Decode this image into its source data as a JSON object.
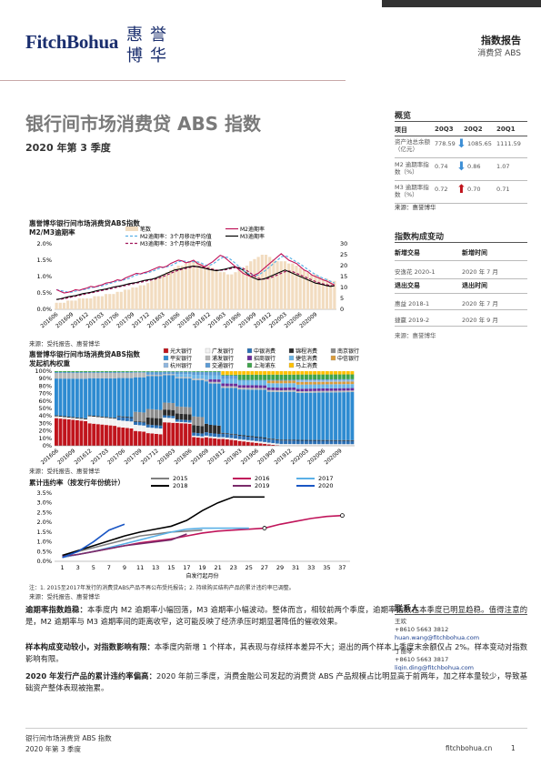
{
  "header": {
    "logo_text": "FitchBohua",
    "seal_chars": [
      "惠",
      "誉",
      "博",
      "华"
    ],
    "report_type": "指数报告",
    "report_sector": "消费贷 ABS"
  },
  "title": "银行间市场消费贷 ABS 指数",
  "subtitle": "2020 年第 3 季度",
  "overview": {
    "heading": "概览",
    "columns": [
      "项目",
      "20Q3",
      "20Q2",
      "20Q1"
    ],
    "rows": [
      {
        "label": "资产池总余额（亿元）",
        "q3": "778.59",
        "q2": "1085.65",
        "q1": "1111.59",
        "arrow": "down"
      },
      {
        "label": "M2 逾期率指数（%）",
        "q3": "0.74",
        "q2": "0.86",
        "q1": "1.07",
        "arrow": "down"
      },
      {
        "label": "M3 逾期率指数（%）",
        "q3": "0.72",
        "q2": "0.70",
        "q1": "0.71",
        "arrow": "up"
      }
    ],
    "source": "来源：惠誉博华"
  },
  "composition": {
    "heading": "指数构成变动",
    "added_label": "新增交易",
    "added_time_label": "新增时间",
    "added": [
      {
        "name": "安逸花 2020-1",
        "time": "2020 年 7 月"
      }
    ],
    "removed_label": "退出交易",
    "removed_time_label": "退出时间",
    "removed": [
      {
        "name": "惠益 2018-1",
        "time": "2020 年 7 月"
      },
      {
        "name": "捷赢 2019-2",
        "time": "2020 年 9 月"
      }
    ],
    "source": "来源：惠誉博华"
  },
  "contacts": {
    "heading": "联系人",
    "people": [
      {
        "name": "王欢",
        "phone": "+8610 5663 3812",
        "email": "huan.wang@fitchbohua.com"
      },
      {
        "name": "丁丽琴",
        "phone": "+8610 5663 3817",
        "email": "liqin.ding@fitchbohua.com"
      }
    ]
  },
  "chart_data": [
    {
      "type": "line",
      "title": "惠誉博华银行间市场消费贷ABS指数",
      "subtitle": "M2/M3逾期率",
      "legend": [
        "笔数",
        "M2逾期率",
        "M2逾期率：3个月移动平均值",
        "M3逾期率",
        "M3逾期率：3个月移动平均值"
      ],
      "x_tick_labels": [
        "201606",
        "201609",
        "201612",
        "201703",
        "201706",
        "201709",
        "201712",
        "201803",
        "201806",
        "201809",
        "201812",
        "201903",
        "201906",
        "201909",
        "201912",
        "202003",
        "202006",
        "202009"
      ],
      "left_axis_labels": [
        "0.0%",
        "0.5%",
        "1.0%",
        "1.5%",
        "2.0%"
      ],
      "right_axis_labels": [
        "0",
        "5",
        "10",
        "15",
        "20",
        "25",
        "30"
      ],
      "ylim_left": [
        0,
        2.0
      ],
      "ylim_right": [
        0,
        30
      ],
      "bars_count": [
        3,
        3,
        3,
        4,
        4,
        4,
        5,
        5,
        5,
        5,
        6,
        6,
        6,
        7,
        7,
        7,
        8,
        8,
        9,
        9,
        10,
        10,
        11,
        11,
        12,
        13,
        14,
        15,
        16,
        17,
        18,
        19,
        20,
        20,
        21,
        22,
        22,
        22,
        21,
        20,
        20,
        19,
        18,
        17,
        17,
        16,
        16,
        17,
        18,
        19,
        20,
        22,
        23,
        24,
        25,
        25,
        24,
        23,
        22,
        22,
        22,
        21,
        21,
        20,
        19,
        18,
        17,
        16,
        16,
        15,
        14,
        14,
        13,
        13
      ],
      "m2": [
        0.6,
        0.55,
        0.5,
        0.52,
        0.55,
        0.6,
        0.58,
        0.62,
        0.65,
        0.7,
        0.68,
        0.72,
        0.75,
        0.8,
        0.82,
        0.85,
        0.9,
        0.88,
        0.95,
        1.0,
        1.05,
        1.1,
        1.08,
        1.12,
        1.15,
        1.2,
        1.25,
        1.3,
        1.28,
        1.32,
        1.4,
        1.45,
        1.5,
        1.48,
        1.42,
        1.45,
        1.5,
        1.4,
        1.35,
        1.3,
        1.38,
        1.45,
        1.55,
        1.65,
        1.6,
        1.5,
        1.4,
        1.3,
        1.2,
        1.1,
        1.05,
        1.0,
        1.05,
        1.1,
        1.2,
        1.3,
        1.4,
        1.5,
        1.6,
        1.7,
        1.6,
        1.5,
        1.45,
        1.4,
        1.3,
        1.2,
        1.15,
        1.05,
        1.0,
        0.95,
        0.9,
        0.86,
        0.8,
        0.74
      ],
      "m3": [
        0.3,
        0.32,
        0.35,
        0.38,
        0.4,
        0.42,
        0.45,
        0.48,
        0.5,
        0.52,
        0.55,
        0.58,
        0.6,
        0.62,
        0.65,
        0.68,
        0.7,
        0.72,
        0.75,
        0.78,
        0.8,
        0.82,
        0.85,
        0.88,
        0.9,
        0.92,
        0.95,
        1.0,
        1.05,
        1.1,
        1.15,
        1.2,
        1.22,
        1.25,
        1.28,
        1.3,
        1.32,
        1.3,
        1.28,
        1.25,
        1.22,
        1.2,
        1.18,
        1.2,
        1.22,
        1.25,
        1.28,
        1.3,
        1.25,
        1.2,
        1.1,
        1.0,
        0.95,
        0.9,
        0.92,
        0.95,
        1.0,
        1.05,
        1.1,
        1.15,
        1.2,
        1.15,
        1.1,
        1.05,
        1.0,
        0.95,
        0.9,
        0.85,
        0.8,
        0.78,
        0.75,
        0.72,
        0.7,
        0.72
      ],
      "source": "来源：受托报告、惠誉博华"
    },
    {
      "type": "bar",
      "stacked": true,
      "title": "惠誉博华银行间市场消费贷ABS指数",
      "subtitle": "发起机构权重",
      "legend": [
        "光大银行",
        "广发银行",
        "中银消费",
        "锦程消费",
        "南京银行",
        "平安银行",
        "浦发银行",
        "招商银行",
        "捷信消费",
        "中信银行",
        "杭州银行",
        "交通银行",
        "上海浦东",
        "马上消费"
      ],
      "colors": [
        "#c0141c",
        "#f2f2f2",
        "#2a6fb5",
        "#2b2b2b",
        "#8c8c8c",
        "#2e8bd1",
        "#b7b7b7",
        "#6a2c9a",
        "#6bb5e6",
        "#d99a3a",
        "#8fb6de",
        "#5b9bd5",
        "#3fa34d",
        "#ffc000"
      ],
      "x_tick_labels": [
        "201606",
        "201609",
        "201612",
        "201703",
        "201706",
        "201709",
        "201712",
        "201803",
        "201806",
        "201809",
        "201812",
        "201903",
        "201906",
        "201909",
        "201912",
        "202003",
        "202006",
        "202009"
      ],
      "y_axis_labels": [
        "0%",
        "10%",
        "20%",
        "30%",
        "40%",
        "50%",
        "60%",
        "70%",
        "80%",
        "90%",
        "100%"
      ],
      "ylim": [
        0,
        100
      ],
      "source": "来源：受托报告、惠誉博华"
    },
    {
      "type": "line",
      "title": "累计违约率（按发行年份统计）",
      "xlabel": "自发行起月份",
      "legend": [
        "2015",
        "2016",
        "2017",
        "2018",
        "2019",
        "2020"
      ],
      "colors": [
        "#808080",
        "#c0145a",
        "#5ab0e6",
        "#000000",
        "#7a2b6a",
        "#1a56c4"
      ],
      "x_tick_labels": [
        "1",
        "3",
        "5",
        "7",
        "9",
        "11",
        "13",
        "15",
        "17",
        "19",
        "21",
        "23",
        "25",
        "27",
        "29",
        "31",
        "33",
        "35",
        "37"
      ],
      "y_axis_labels": [
        "0.0%",
        "0.5%",
        "1.0%",
        "1.5%",
        "2.0%",
        "2.5%",
        "3.0%",
        "3.5%"
      ],
      "ylim": [
        0,
        3.5
      ],
      "series": [
        {
          "name": "2015",
          "x": [
            1,
            3,
            5,
            7,
            9,
            11,
            13,
            15,
            17,
            19
          ],
          "y": [
            0.3,
            0.5,
            0.7,
            0.9,
            1.1,
            1.3,
            1.4,
            1.5,
            1.55,
            1.6
          ]
        },
        {
          "name": "2016",
          "x": [
            1,
            3,
            5,
            7,
            9,
            11,
            13,
            15,
            17,
            19,
            21,
            23,
            25,
            27,
            29,
            31,
            33,
            35,
            37
          ],
          "y": [
            0.2,
            0.35,
            0.5,
            0.65,
            0.8,
            0.95,
            1.05,
            1.15,
            1.3,
            1.45,
            1.55,
            1.6,
            1.65,
            1.7,
            1.9,
            2.05,
            2.2,
            2.3,
            2.35
          ]
        },
        {
          "name": "2017",
          "x": [
            1,
            3,
            5,
            7,
            9,
            11,
            13,
            15,
            17,
            19,
            21,
            23,
            25
          ],
          "y": [
            0.2,
            0.35,
            0.5,
            0.7,
            0.9,
            1.1,
            1.3,
            1.5,
            1.65,
            1.7,
            1.7,
            1.7,
            1.7
          ]
        },
        {
          "name": "2018",
          "x": [
            1,
            3,
            5,
            7,
            9,
            11,
            13,
            15,
            17,
            19,
            21,
            23,
            25,
            27
          ],
          "y": [
            0.3,
            0.55,
            0.8,
            1.05,
            1.3,
            1.5,
            1.65,
            1.8,
            2.1,
            2.6,
            3.0,
            3.3,
            3.3,
            3.3
          ]
        },
        {
          "name": "2019",
          "x": [
            1,
            3,
            5,
            7,
            9,
            11,
            13,
            15,
            17
          ],
          "y": [
            0.25,
            0.35,
            0.5,
            0.65,
            0.8,
            0.9,
            1.0,
            1.1,
            1.4
          ]
        },
        {
          "name": "2020",
          "x": [
            1,
            3,
            5,
            7,
            9
          ],
          "y": [
            0.2,
            0.5,
            1.0,
            1.6,
            1.9
          ]
        }
      ],
      "notes": "注：1. 2015至2017年发行的消费贷ABS产品不再公布受托报告；2. 持续购买结构产品的累计违约率已调整。",
      "source": "来源：受托报告、惠誉博华"
    }
  ],
  "paragraphs": [
    {
      "lead": "逾期率指数趋稳：",
      "text": "本季度内 M2 逾期率小幅回落，M3 逾期率小幅波动。整体而言，相较前两个季度，逾期率指数在本季度已明显趋稳。值得注意的是，M2 逾期率与 M3 逾期率间的距离收窄，这可能反映了经济承压时期显著降低的催收效果。"
    },
    {
      "lead": "样本构成变动较小，对指数影响有限：",
      "text": "本季度内新增 1 个样本，其表现与存续样本差异不大；退出的两个样本上季度末余额仅占 2%。样本变动对指数影响有限。"
    },
    {
      "lead": "2020 年发行产品的累计违约率偏高：",
      "text": "2020 年前三季度，消费金融公司发起的消费贷 ABS 产品规模占比明显高于前两年，加之样本量较少，导致基础资产整体表现被拖累。"
    }
  ],
  "footer": {
    "left_line1": "银行间市场消费贷 ABS 指数",
    "left_line2": "2020 年第 3 季度",
    "site": "fitchbohua.cn",
    "page": "1"
  }
}
